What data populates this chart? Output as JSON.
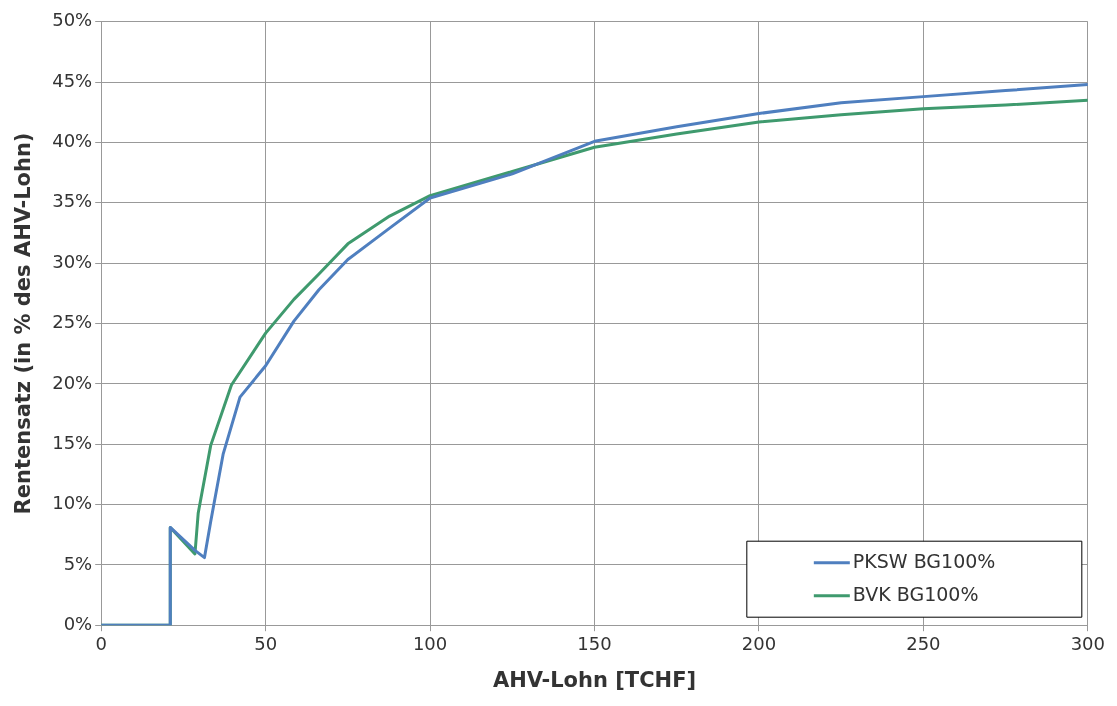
{
  "chart_data": {
    "type": "line",
    "xlabel": "AHV-Lohn [TCHF]",
    "ylabel": "Rentensatz (in % des AHV-Lohn)",
    "xlim": [
      0,
      300
    ],
    "xticks": [
      0,
      50,
      100,
      150,
      200,
      250,
      300
    ],
    "ylim": [
      0,
      50
    ],
    "yticks": [
      {
        "value": 0,
        "label": "0%"
      },
      {
        "value": 5,
        "label": "5%"
      },
      {
        "value": 10,
        "label": "10%"
      },
      {
        "value": 15,
        "label": "15%"
      },
      {
        "value": 20,
        "label": "20%"
      },
      {
        "value": 25,
        "label": "25%"
      },
      {
        "value": 30,
        "label": "30%"
      },
      {
        "value": 35,
        "label": "35%"
      },
      {
        "value": 40,
        "label": "40%"
      },
      {
        "value": 45,
        "label": "45%"
      },
      {
        "value": 50,
        "label": "50%"
      }
    ],
    "grid": true,
    "legend": "bottom right",
    "marker": "none",
    "line_style": "solid",
    "series": [
      {
        "name": "PKSW BG100%",
        "color": "#4f7fbf",
        "x": [
          0,
          21,
          21,
          28.5,
          31.4,
          33.3,
          37.1,
          42.2,
          50,
          58.6,
          66.2,
          75,
          87.7,
          100,
          125,
          150,
          175,
          200,
          225,
          250,
          275,
          300
        ],
        "values": [
          0,
          0,
          8.1,
          6.2,
          5.6,
          8.6,
          14.2,
          18.9,
          21.5,
          25.2,
          27.8,
          30.3,
          32.9,
          35.4,
          37.4,
          40.1,
          41.3,
          42.4,
          43.3,
          43.8,
          44.3,
          44.8
        ]
      },
      {
        "name": "BVK BG100%",
        "color": "#3f9a6e",
        "x": [
          0,
          21,
          21,
          28.5,
          29.5,
          33.3,
          39.6,
          50,
          58.6,
          66.2,
          75,
          87.7,
          100,
          125,
          150,
          175,
          200,
          225,
          250,
          275,
          300
        ],
        "values": [
          0,
          0,
          8.1,
          5.9,
          9.3,
          14.9,
          19.9,
          24.2,
          27,
          29.1,
          31.6,
          33.9,
          35.6,
          37.6,
          39.6,
          40.7,
          41.7,
          42.3,
          42.8,
          43.1,
          43.5
        ]
      }
    ]
  }
}
